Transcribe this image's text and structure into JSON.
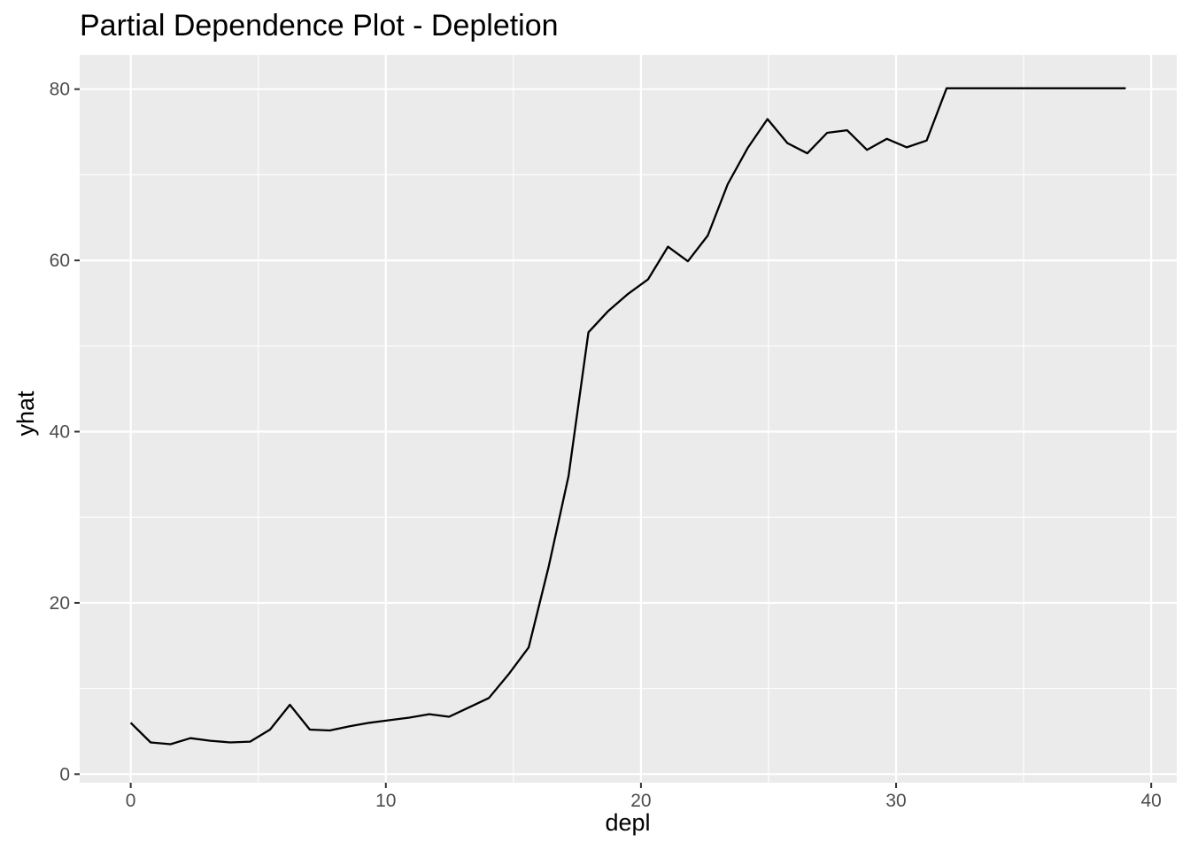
{
  "chart_data": {
    "type": "line",
    "title": "Partial Dependence Plot - Depletion",
    "xlabel": "depl",
    "ylabel": "yhat",
    "xlim": [
      -2,
      41
    ],
    "ylim": [
      -1,
      84
    ],
    "x_ticks": [
      0,
      10,
      20,
      30,
      40
    ],
    "y_ticks": [
      0,
      20,
      40,
      60,
      80
    ],
    "x_minor": [
      5,
      15,
      25,
      35
    ],
    "y_minor": [
      10,
      30,
      50,
      70
    ],
    "grid": true,
    "colors": {
      "panel": "#ebebeb",
      "grid": "#ffffff",
      "line": "#000000",
      "tick_text": "#4d4d4d",
      "tick_mark": "#333333"
    },
    "series": [
      {
        "x": [
          0,
          0.78,
          1.56,
          2.34,
          3.12,
          3.9,
          4.68,
          5.46,
          6.24,
          7.02,
          7.8,
          8.58,
          9.36,
          10.14,
          10.92,
          11.7,
          12.48,
          13.26,
          14.04,
          14.82,
          15.6,
          16.38,
          17.16,
          17.94,
          18.72,
          19.5,
          20.28,
          21.06,
          21.84,
          22.62,
          23.4,
          24.18,
          24.96,
          25.74,
          26.52,
          27.3,
          28.08,
          28.86,
          29.64,
          30.42,
          31.2,
          31.98,
          32.76,
          33.54,
          34.32,
          35.1,
          35.88,
          36.66,
          37.44,
          38.22,
          39.0
        ],
        "values": [
          6.0,
          3.7,
          3.5,
          4.2,
          3.9,
          3.7,
          3.8,
          5.2,
          8.1,
          5.2,
          5.1,
          5.6,
          6.0,
          6.3,
          6.6,
          7.0,
          6.7,
          7.8,
          8.9,
          11.7,
          14.8,
          24.2,
          34.8,
          51.6,
          54.1,
          56.1,
          57.8,
          61.6,
          59.9,
          62.9,
          68.9,
          73.1,
          76.5,
          73.7,
          72.5,
          74.9,
          75.2,
          72.9,
          74.2,
          73.2,
          74.0,
          80.1,
          80.1,
          80.1,
          80.1,
          80.1,
          80.1,
          80.1,
          80.1,
          80.1,
          80.1
        ]
      }
    ]
  }
}
